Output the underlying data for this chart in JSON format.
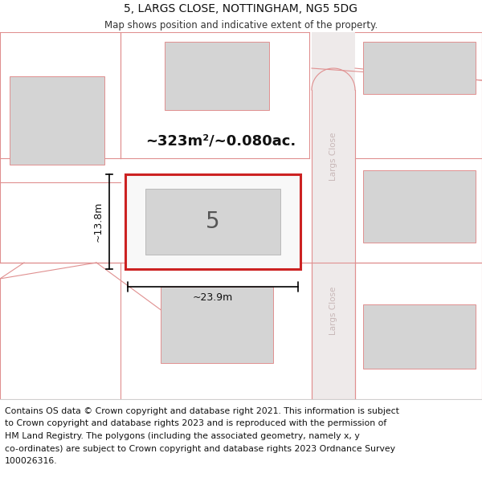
{
  "title": "5, LARGS CLOSE, NOTTINGHAM, NG5 5DG",
  "subtitle": "Map shows position and indicative extent of the property.",
  "footer_lines": [
    "Contains OS data © Crown copyright and database right 2021. This information is subject",
    "to Crown copyright and database rights 2023 and is reproduced with the permission of",
    "HM Land Registry. The polygons (including the associated geometry, namely x, y",
    "co-ordinates) are subject to Crown copyright and database rights 2023 Ordnance Survey",
    "100026316."
  ],
  "map_bg": "#f2eded",
  "plot_bg": "#ffffff",
  "footer_bg": "#ffffff",
  "red_border": "#cc2222",
  "pink_line": "#e09090",
  "gray_building": "#d4d4d4",
  "area_text": "~323m²/~0.080ac.",
  "width_text": "~23.9m",
  "height_text": "~13.8m",
  "number_text": "5",
  "road_label": "Largs Close",
  "title_fontsize": 10,
  "subtitle_fontsize": 8.5,
  "footer_fontsize": 7.8,
  "area_fontsize": 13,
  "dim_fontsize": 9,
  "num_fontsize": 20
}
